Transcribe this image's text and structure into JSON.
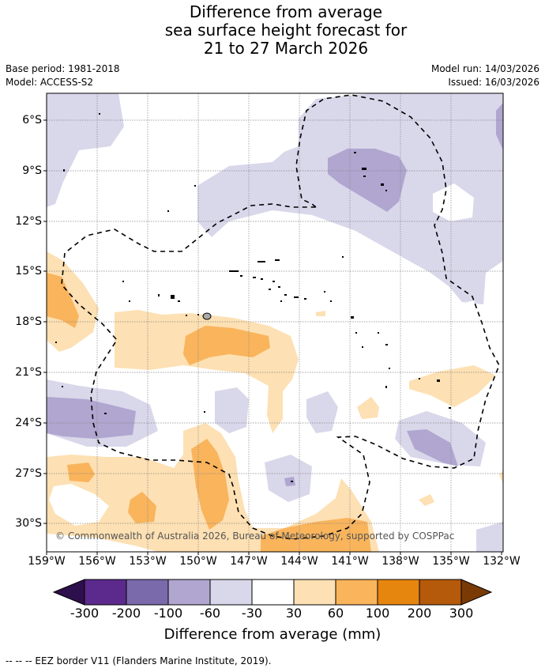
{
  "title": {
    "line1": "Difference from average",
    "line2": "sea surface height forecast for",
    "line3": "21 to 27 March 2026"
  },
  "meta": {
    "base_period": "Base period: 1981-2018",
    "model": "Model: ACCESS-S2",
    "model_run": "Model run: 14/03/2026",
    "issued": "Issued: 16/03/2026"
  },
  "map": {
    "lat_labels": [
      "6°S",
      "9°S",
      "12°S",
      "15°S",
      "18°S",
      "21°S",
      "24°S",
      "27°S",
      "30°S"
    ],
    "lon_labels": [
      "159°W",
      "156°W",
      "153°W",
      "150°W",
      "147°W",
      "144°W",
      "141°W",
      "138°W",
      "135°W",
      "132°W"
    ],
    "copyright": "© Commonwealth of Australia 2026, Bureau of Meteorology, supported by COSPPac",
    "colors": {
      "neg300": "#4a1d6e",
      "neg200": "#7a6aac",
      "neg100": "#b0a6d0",
      "neg60": "#d9d7ea",
      "pos30": "#fde0b3",
      "pos60": "#f9b45c",
      "pos100": "#e6860f",
      "pos200": "#b5590a",
      "pos300": "#7a3a06"
    }
  },
  "colorbar": {
    "ticks": [
      "-300",
      "-200",
      "-100",
      "-60",
      "-30",
      "30",
      "60",
      "100",
      "200",
      "300"
    ],
    "title": "Difference from average (mm)"
  },
  "legend": {
    "text": "--  --  -- EEZ border V11 (Flanders Marine Institute, 2019)."
  }
}
